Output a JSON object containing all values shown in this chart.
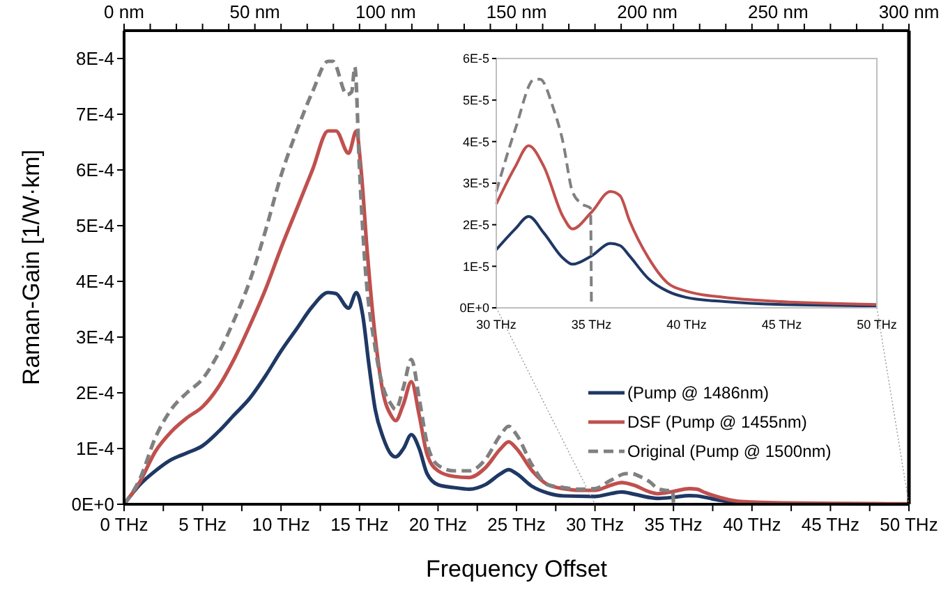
{
  "chart_data": [
    {
      "type": "line",
      "xlabel": "Frequency Offset",
      "ylabel": "Raman-Gain  [1/W·km]",
      "xlim": [
        0,
        50
      ],
      "ylim": [
        0,
        0.00085
      ],
      "xticks": [
        {
          "value": 0,
          "label": "0 THz"
        },
        {
          "value": 2.5,
          "label": null
        },
        {
          "value": 5,
          "label": "5 THz"
        },
        {
          "value": 7.5,
          "label": null
        },
        {
          "value": 10,
          "label": "10 THz"
        },
        {
          "value": 12.5,
          "label": null
        },
        {
          "value": 15,
          "label": "15 THz"
        },
        {
          "value": 17.5,
          "label": null
        },
        {
          "value": 20,
          "label": "20 THz"
        },
        {
          "value": 22.5,
          "label": null
        },
        {
          "value": 25,
          "label": "25 THz"
        },
        {
          "value": 27.5,
          "label": null
        },
        {
          "value": 30,
          "label": "30 THz"
        },
        {
          "value": 32.5,
          "label": null
        },
        {
          "value": 35,
          "label": "35 THz"
        },
        {
          "value": 37.5,
          "label": null
        },
        {
          "value": 40,
          "label": "40 THz"
        },
        {
          "value": 42.5,
          "label": null
        },
        {
          "value": 45,
          "label": "45 THz"
        },
        {
          "value": 47.5,
          "label": null
        },
        {
          "value": 50,
          "label": "50 THz"
        }
      ],
      "yticks": [
        {
          "value": 0,
          "label": "0E+0"
        },
        {
          "value": 0.0001,
          "label": "1E-4"
        },
        {
          "value": 0.0002,
          "label": "2E-4"
        },
        {
          "value": 0.0003,
          "label": "3E-4"
        },
        {
          "value": 0.0004,
          "label": "4E-4"
        },
        {
          "value": 0.0005,
          "label": "5E-4"
        },
        {
          "value": 0.0006,
          "label": "6E-4"
        },
        {
          "value": 0.0007,
          "label": "7E-4"
        },
        {
          "value": 0.0008,
          "label": "8E-4"
        }
      ],
      "x2lim": [
        0,
        300
      ],
      "x2ticks": [
        {
          "value": 0,
          "label": "0 nm"
        },
        {
          "value": 10,
          "label": null
        },
        {
          "value": 20,
          "label": null
        },
        {
          "value": 30,
          "label": null
        },
        {
          "value": 40,
          "label": null
        },
        {
          "value": 50,
          "label": "50 nm"
        },
        {
          "value": 60,
          "label": null
        },
        {
          "value": 70,
          "label": null
        },
        {
          "value": 80,
          "label": null
        },
        {
          "value": 90,
          "label": null
        },
        {
          "value": 100,
          "label": "100 nm"
        },
        {
          "value": 110,
          "label": null
        },
        {
          "value": 120,
          "label": null
        },
        {
          "value": 130,
          "label": null
        },
        {
          "value": 140,
          "label": null
        },
        {
          "value": 150,
          "label": "150 nm"
        },
        {
          "value": 160,
          "label": null
        },
        {
          "value": 170,
          "label": null
        },
        {
          "value": 180,
          "label": null
        },
        {
          "value": 190,
          "label": null
        },
        {
          "value": 200,
          "label": "200 nm"
        },
        {
          "value": 210,
          "label": null
        },
        {
          "value": 220,
          "label": null
        },
        {
          "value": 230,
          "label": null
        },
        {
          "value": 240,
          "label": null
        },
        {
          "value": 250,
          "label": "250 nm"
        },
        {
          "value": 260,
          "label": null
        },
        {
          "value": 270,
          "label": null
        },
        {
          "value": 280,
          "label": null
        },
        {
          "value": 290,
          "label": null
        },
        {
          "value": 300,
          "label": "300 nm"
        }
      ],
      "grid": false,
      "legend": "bottom right",
      "marker": "none",
      "series": [
        {
          "name": "(Pump @ 1486nm)",
          "color": "#1f3864",
          "line_style": "solid",
          "x": [
            0,
            1,
            2,
            3,
            4,
            5,
            6,
            7,
            8,
            9,
            10,
            11,
            12,
            13,
            13.5,
            14.3,
            14.8,
            15.2,
            15.6,
            16,
            16.5,
            17,
            17.3,
            17.8,
            18.3,
            18.8,
            19.3,
            20,
            21,
            22,
            23,
            24,
            24.5,
            25,
            26,
            27,
            28,
            30,
            31,
            31.7,
            32.5,
            33.5,
            34,
            35,
            36,
            36.5,
            37,
            38,
            39,
            40,
            42,
            45,
            50
          ],
          "values": [
            0,
            3.5e-05,
            6e-05,
            8e-05,
            9.2e-05,
            0.000105,
            0.00013,
            0.00016,
            0.00019,
            0.00023,
            0.000275,
            0.000315,
            0.000355,
            0.00038,
            0.000378,
            0.000352,
            0.00038,
            0.00034,
            0.00025,
            0.00017,
            0.00012,
            9e-05,
            8.5e-05,
            0.0001,
            0.000125,
            0.0001,
            5.5e-05,
            3.5e-05,
            3e-05,
            2.7e-05,
            3.5e-05,
            5.5e-05,
            6.2e-05,
            5.5e-05,
            3.2e-05,
            2e-05,
            1.5e-05,
            1.4e-05,
            1.9e-05,
            2.2e-05,
            1.8e-05,
            1.2e-05,
            1.05e-05,
            1.25e-05,
            1.55e-05,
            1.5e-05,
            1.25e-05,
            7e-06,
            4e-06,
            2.5e-06,
            1.5e-06,
            8e-07,
            5e-07
          ]
        },
        {
          "name": "DSF (Pump @ 1455nm)",
          "color": "#c0504d",
          "line_style": "solid",
          "x": [
            0,
            1,
            2,
            3,
            4,
            5,
            6,
            7,
            8,
            9,
            10,
            11,
            12,
            13,
            13.5,
            14.3,
            14.8,
            15.1,
            15.5,
            16,
            16.5,
            17,
            17.3,
            17.8,
            18.3,
            18.8,
            19.3,
            20,
            21,
            22,
            23,
            24,
            24.5,
            25,
            26,
            27,
            28,
            29,
            30,
            31,
            31.7,
            32.5,
            33.5,
            34,
            35,
            36,
            36.5,
            37,
            38,
            39,
            40,
            42,
            45,
            50
          ],
          "values": [
            0,
            4e-05,
            9.5e-05,
            0.00013,
            0.000155,
            0.000175,
            0.00021,
            0.00026,
            0.00032,
            0.000385,
            0.00046,
            0.00053,
            0.0006,
            0.00067,
            0.00067,
            0.00063,
            0.00067,
            0.0006,
            0.00045,
            0.0003,
            0.0002,
            0.00016,
            0.00015,
            0.00018,
            0.00022,
            0.00016,
            9e-05,
            6e-05,
            5e-05,
            4.8e-05,
            6.5e-05,
            0.0001,
            0.000112,
            0.0001,
            6e-05,
            3.5e-05,
            2.8e-05,
            2.5e-05,
            2.5e-05,
            3.4e-05,
            3.9e-05,
            3.4e-05,
            2.2e-05,
            1.9e-05,
            2.3e-05,
            2.8e-05,
            2.7e-05,
            2.1e-05,
            1.2e-05,
            6e-06,
            4e-06,
            2.5e-06,
            1.5e-06,
            8e-07
          ]
        },
        {
          "name": "Original (Pump @ 1500nm)",
          "color": "#808080",
          "line_style": "dashed",
          "x": [
            0,
            1,
            2,
            3,
            4,
            5,
            6,
            7,
            8,
            9,
            10,
            11,
            12,
            13,
            13.3,
            14.2,
            14.5,
            14.7,
            15,
            15.3,
            16,
            16.5,
            17,
            17.3,
            17.8,
            18.3,
            18.8,
            19.3,
            20,
            21,
            22,
            23,
            24,
            24.5,
            25,
            26,
            27,
            28,
            29,
            30,
            31,
            32,
            32.3,
            33,
            33.5,
            34,
            34.5,
            34.95,
            35
          ],
          "values": [
            0,
            4.5e-05,
            0.00012,
            0.00017,
            0.0002,
            0.000225,
            0.00027,
            0.00033,
            0.0004,
            0.00049,
            0.00059,
            0.00067,
            0.00074,
            0.000795,
            0.000795,
            0.000735,
            0.00074,
            0.000785,
            0.0006,
            0.00045,
            0.00028,
            0.00021,
            0.00018,
            0.00017,
            0.00021,
            0.00026,
            0.00019,
            0.00011,
            7e-05,
            6e-05,
            6e-05,
            8e-05,
            0.000125,
            0.00014,
            0.000125,
            7e-05,
            3.5e-05,
            3e-05,
            2.7e-05,
            2.8e-05,
            4.3e-05,
            5.5e-05,
            5.5e-05,
            4.8e-05,
            4e-05,
            2.8e-05,
            2.5e-05,
            2.4e-05,
            0
          ]
        }
      ]
    },
    {
      "type": "line",
      "xlim": [
        30,
        50
      ],
      "ylim": [
        0,
        6e-05
      ],
      "xticks": [
        {
          "value": 30,
          "label": "30 THz"
        },
        {
          "value": 35,
          "label": "35 THz"
        },
        {
          "value": 40,
          "label": "40 THz"
        },
        {
          "value": 45,
          "label": "45 THz"
        },
        {
          "value": 50,
          "label": "50 THz"
        }
      ],
      "yticks": [
        {
          "value": 0,
          "label": "0E+0"
        },
        {
          "value": 1e-05,
          "label": "1E-5"
        },
        {
          "value": 2e-05,
          "label": "2E-5"
        },
        {
          "value": 3e-05,
          "label": "3E-5"
        },
        {
          "value": 4e-05,
          "label": "4E-5"
        },
        {
          "value": 5e-05,
          "label": "5E-5"
        },
        {
          "value": 6e-05,
          "label": "6E-5"
        }
      ],
      "grid": false,
      "legend": false,
      "marker": "none",
      "series": [
        {
          "color": "#1f3864",
          "line_style": "solid",
          "x": [
            30,
            31,
            31.7,
            32.5,
            33.5,
            34,
            35,
            36,
            36.5,
            37,
            38,
            39,
            40,
            42,
            45,
            50
          ],
          "values": [
            1.4e-05,
            1.9e-05,
            2.2e-05,
            1.8e-05,
            1.2e-05,
            1.05e-05,
            1.25e-05,
            1.55e-05,
            1.5e-05,
            1.25e-05,
            7e-06,
            4e-06,
            2.5e-06,
            1.5e-06,
            8e-07,
            5e-07
          ]
        },
        {
          "color": "#c0504d",
          "line_style": "solid",
          "x": [
            30,
            31,
            31.7,
            32.5,
            33.5,
            34,
            35,
            36,
            36.5,
            37,
            38,
            39,
            40,
            42,
            45,
            50
          ],
          "values": [
            2.5e-05,
            3.4e-05,
            3.9e-05,
            3.4e-05,
            2.2e-05,
            1.9e-05,
            2.3e-05,
            2.8e-05,
            2.7e-05,
            2.1e-05,
            1.2e-05,
            6e-06,
            4e-06,
            2.5e-06,
            1.5e-06,
            8e-07
          ]
        },
        {
          "color": "#808080",
          "line_style": "dashed",
          "x": [
            30,
            31,
            32,
            32.3,
            33,
            33.5,
            34,
            34.5,
            34.95,
            35
          ],
          "values": [
            2.8e-05,
            4.3e-05,
            5.5e-05,
            5.5e-05,
            4.8e-05,
            4e-05,
            2.8e-05,
            2.5e-05,
            2.4e-05,
            0
          ]
        }
      ]
    }
  ]
}
